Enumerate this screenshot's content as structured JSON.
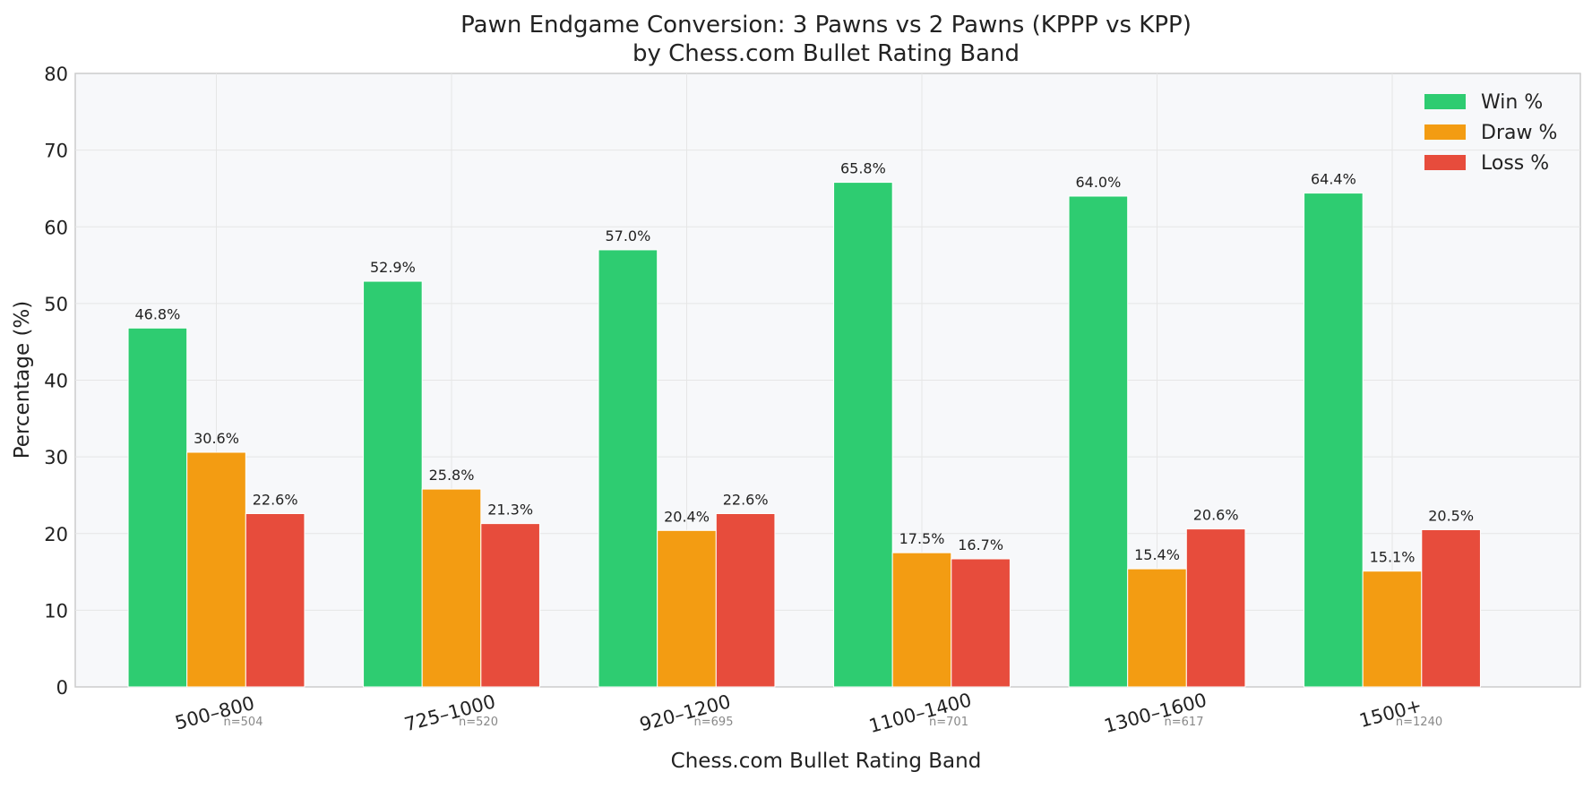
{
  "chart_data": {
    "type": "bar",
    "title_line1": "Pawn Endgame Conversion: 3 Pawns vs 2 Pawns (KPPP vs KPP)",
    "title_line2": "by Chess.com Bullet Rating Band",
    "xlabel": "Chess.com Bullet Rating Band",
    "ylabel": "Percentage (%)",
    "ylim": [
      0,
      80
    ],
    "yticks": [
      0,
      10,
      20,
      30,
      40,
      50,
      60,
      70,
      80
    ],
    "grid": true,
    "legend_position": "top-right",
    "categories": [
      "500–800",
      "725–1000",
      "920–1200",
      "1100–1400",
      "1300–1600",
      "1500+"
    ],
    "sample_sizes": [
      "n=504",
      "n=520",
      "n=695",
      "n=701",
      "n=617",
      "n=1240"
    ],
    "series": [
      {
        "name": "Win %",
        "color": "#2ecc71",
        "values": [
          46.8,
          52.9,
          57.0,
          65.8,
          64.0,
          64.4
        ],
        "labels": [
          "46.8%",
          "52.9%",
          "57.0%",
          "65.8%",
          "64.0%",
          "64.4%"
        ]
      },
      {
        "name": "Draw %",
        "color": "#f39c12",
        "values": [
          30.6,
          25.8,
          20.4,
          17.5,
          15.4,
          15.1
        ],
        "labels": [
          "30.6%",
          "25.8%",
          "20.4%",
          "17.5%",
          "15.4%",
          "15.1%"
        ]
      },
      {
        "name": "Loss %",
        "color": "#e74c3c",
        "values": [
          22.6,
          21.3,
          22.6,
          16.7,
          20.6,
          20.5
        ],
        "labels": [
          "22.6%",
          "21.3%",
          "22.6%",
          "16.7%",
          "20.6%",
          "20.5%"
        ]
      }
    ]
  }
}
